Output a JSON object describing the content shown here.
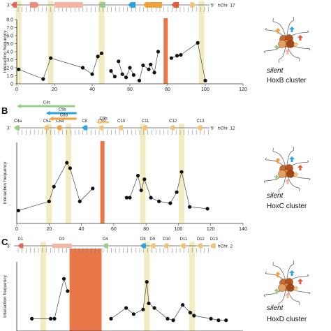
{
  "chart_data": [
    {
      "type": "line",
      "panel": "",
      "chromosome": "hChr. 17",
      "strand_left": "3'",
      "strand_right": "5'",
      "cluster_state": "silent",
      "cluster_name": "HoxB cluster",
      "ylabel": "Interaction frequency",
      "xlim": [
        0,
        120
      ],
      "ylim": [
        0,
        8
      ],
      "xticks": [
        0,
        20,
        40,
        60,
        80,
        100,
        120
      ],
      "yticks": [
        0,
        1.0,
        2.0,
        3.0,
        4.0,
        5.0,
        6.0,
        7.0,
        8.0
      ],
      "ytick_labels": [
        "0",
        "1.0",
        "2.0",
        "3.0",
        "4.0",
        "5.0",
        "6.0",
        "7.0",
        "8.0"
      ],
      "genes": [],
      "highlight_bands": [
        1,
        18,
        45,
        98
      ],
      "anchor": 79,
      "anchor_color": "#e8774a",
      "band_color": "#eee9b6",
      "segments": [
        {
          "x": [
            1,
            14,
            18,
            35,
            40,
            43,
            45
          ],
          "y": [
            1.8,
            0.6,
            3.2,
            2.0,
            1.2,
            3.4,
            3.8
          ]
        },
        {
          "x": [
            50,
            52
          ],
          "y": [
            1.6,
            0.9
          ]
        },
        {
          "x": [
            54,
            56,
            58,
            60,
            62
          ],
          "y": [
            2.8,
            1.2,
            0.8,
            2.0,
            1.1
          ]
        },
        {
          "x": [
            65,
            67,
            70,
            71,
            73,
            75
          ],
          "y": [
            0.4,
            2.3,
            1.8,
            2.4,
            1.4,
            4.0
          ]
        },
        {
          "x": [
            82,
            85,
            87,
            96,
            100
          ],
          "y": [
            3.2,
            3.5,
            3.6,
            5.1,
            0.4
          ]
        }
      ],
      "gene_bar": [
        {
          "name": "",
          "color": "#e8655d",
          "dir": "left",
          "start": -3,
          "end": 0
        },
        {
          "name": "",
          "color": "#f08c7e",
          "dir": "right",
          "start": 7,
          "end": 12
        },
        {
          "name": "",
          "color": "#f5b5a2",
          "dir": "bar",
          "start": 20,
          "end": 35
        },
        {
          "name": "",
          "color": "#9ccc8a",
          "dir": "left",
          "start": 43,
          "end": 47
        },
        {
          "name": "",
          "color": "#2aa3df",
          "dir": "left",
          "start": 59,
          "end": 63
        },
        {
          "name": "",
          "color": "#f2a13a",
          "dir": "left",
          "start": 67,
          "end": 77
        },
        {
          "name": "",
          "color": "#e05d3a",
          "dir": "left",
          "start": 82,
          "end": 86
        },
        {
          "name": "",
          "color": "#f3c27a",
          "dir": "right",
          "start": 92,
          "end": 95
        }
      ]
    },
    {
      "type": "line",
      "panel": "B",
      "chromosome": "hChr. 12",
      "strand_left": "3'",
      "strand_right": "5'",
      "cluster_state": "silent",
      "cluster_name": "HoxC cluster",
      "ylabel": "Interaction frequency",
      "xlim": [
        0,
        140
      ],
      "ylim": [
        0,
        2.2
      ],
      "xticks": [
        0,
        20,
        40,
        60,
        80,
        100,
        120,
        140
      ],
      "yticks": [],
      "ytick_labels": [],
      "genes": [
        "C4a",
        "C5a",
        "C6a",
        "C8",
        "C9a",
        "C10",
        "C11",
        "C12",
        "C13"
      ],
      "transcripts": [
        {
          "name": "C4c",
          "color": "#9ccc8a",
          "start": 0,
          "end": 36
        },
        {
          "name": "C5b",
          "color": "#2aa3df",
          "start": 18,
          "end": 37
        },
        {
          "name": "C6b",
          "color": "#f2a13a",
          "start": 20,
          "end": 37
        },
        {
          "name": "C9b",
          "color": "#f3c27a",
          "start": 49,
          "end": 57
        }
      ],
      "highlight_bands": [
        20,
        32,
        78,
        102
      ],
      "anchor": 53,
      "anchor_color": "#e8774a",
      "band_color": "#eee9b6",
      "segments": [
        {
          "x": [
            1,
            20,
            23,
            31,
            33,
            39,
            47
          ],
          "y": [
            0.35,
            0.6,
            1.0,
            1.65,
            1.5,
            0.6,
            0.95
          ]
        },
        {
          "x": [
            68,
            70,
            75,
            77,
            79,
            83,
            88,
            95,
            99,
            102,
            107,
            118
          ],
          "y": [
            0.7,
            0.7,
            1.3,
            0.9,
            1.2,
            0.7,
            0.6,
            0.55,
            0.85,
            1.4,
            0.45,
            0.4
          ]
        }
      ]
    },
    {
      "type": "line",
      "panel": "C",
      "chromosome": "hChr. 2",
      "strand_left": "3'",
      "strand_right": "5'",
      "cluster_state": "silent",
      "cluster_name": "HoxD cluster",
      "ylabel": "Interaction frequency",
      "xlim": [
        0,
        120
      ],
      "ylim": [
        0,
        4.5
      ],
      "xticks": [
        0,
        20,
        40,
        60,
        80,
        100,
        120
      ],
      "yticks": [],
      "ytick_labels": [],
      "genes": [
        "D1",
        "D3",
        "D4",
        "D8",
        "D9",
        "D10",
        "D11",
        "D12",
        "D13"
      ],
      "highlight_bands": [
        14,
        69,
        93
      ],
      "anchor_band": [
        28,
        45
      ],
      "anchor_color": "#e8774a",
      "band_color": "#eee9b6",
      "segments": [
        {
          "x": [
            8,
            18,
            20,
            25,
            27
          ],
          "y": [
            0.8,
            0.8,
            0.8,
            3.4,
            2.6
          ]
        },
        {
          "x": [
            50,
            58,
            62,
            67,
            69,
            70,
            73,
            80,
            83,
            88,
            92,
            94,
            103,
            107,
            111
          ],
          "y": [
            0.8,
            1.5,
            1.1,
            1.4,
            3.2,
            1.8,
            1.5,
            0.8,
            0.7,
            1.7,
            1.2,
            1.0,
            0.8,
            0.7,
            0.7
          ]
        }
      ]
    }
  ]
}
